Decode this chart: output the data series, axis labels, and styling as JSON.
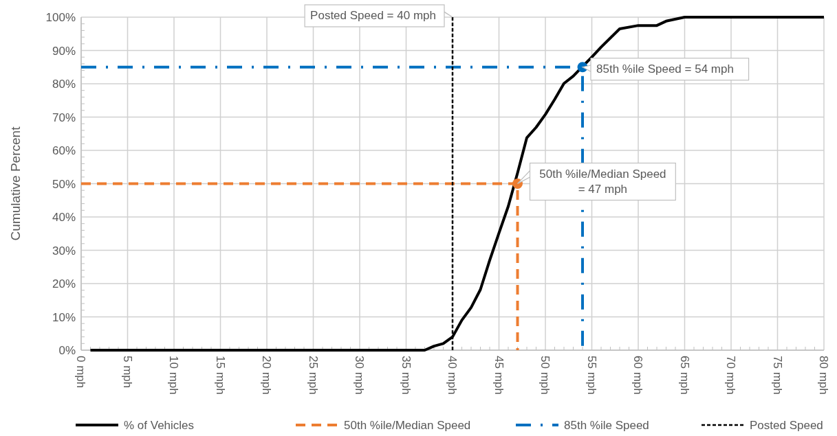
{
  "chart_data": {
    "type": "line",
    "ylabel": "Cumulative Percent",
    "xlim": [
      0,
      80
    ],
    "xticks": [
      {
        "value": 0,
        "label": "0 mph"
      },
      {
        "value": 5,
        "label": "5 mph"
      },
      {
        "value": 10,
        "label": "10 mph"
      },
      {
        "value": 15,
        "label": "15 mph"
      },
      {
        "value": 20,
        "label": "20 mph"
      },
      {
        "value": 25,
        "label": "25 mph"
      },
      {
        "value": 30,
        "label": "30 mph"
      },
      {
        "value": 35,
        "label": "35 mph"
      },
      {
        "value": 40,
        "label": "40 mph"
      },
      {
        "value": 45,
        "label": "45 mph"
      },
      {
        "value": 50,
        "label": "50 mph"
      },
      {
        "value": 55,
        "label": "55 mph"
      },
      {
        "value": 60,
        "label": "60 mph"
      },
      {
        "value": 65,
        "label": "65 mph"
      },
      {
        "value": 70,
        "label": "70 mph"
      },
      {
        "value": 75,
        "label": "75 mph"
      },
      {
        "value": 80,
        "label": "80 mph"
      }
    ],
    "ylim": [
      0,
      100
    ],
    "yticks": [
      {
        "value": 0,
        "label": "0%"
      },
      {
        "value": 10,
        "label": "10%"
      },
      {
        "value": 20,
        "label": "20%"
      },
      {
        "value": 30,
        "label": "30%"
      },
      {
        "value": 40,
        "label": "40%"
      },
      {
        "value": 50,
        "label": "50%"
      },
      {
        "value": 60,
        "label": "60%"
      },
      {
        "value": 70,
        "label": "70%"
      },
      {
        "value": 80,
        "label": "80%"
      },
      {
        "value": 90,
        "label": "90%"
      },
      {
        "value": 100,
        "label": "100%"
      }
    ],
    "grid": true,
    "legend": "bottom",
    "series": [
      {
        "name": "% of Vehicles",
        "color": "#000000",
        "line_style": "solid",
        "x": [
          1,
          37,
          38,
          39,
          40,
          41,
          42,
          43,
          44,
          45,
          46,
          47,
          48,
          49,
          50,
          51,
          52,
          53,
          54,
          55,
          56,
          58,
          60,
          62,
          63,
          65,
          80
        ],
        "values": [
          0,
          0,
          1.2,
          2,
          4,
          9,
          12.8,
          18.2,
          27,
          35.2,
          43.2,
          53.2,
          63.8,
          66.9,
          70.8,
          75.3,
          80.1,
          82.3,
          85.2,
          88,
          91,
          96.5,
          97.5,
          97.5,
          98.8,
          100,
          100
        ]
      },
      {
        "name": "50th %ile/Median Speed",
        "color": "#ed7d31",
        "line_style": "dashed",
        "x": [
          0,
          47,
          47
        ],
        "values": [
          50,
          50,
          0
        ]
      },
      {
        "name": "85th %ile Speed",
        "color": "#0070c0",
        "line_style": "dashdot",
        "x": [
          0,
          54,
          54
        ],
        "values": [
          85,
          85,
          0
        ]
      },
      {
        "name": "Posted Speed",
        "color": "#000000",
        "line_style": "dotted",
        "x": [
          40,
          40
        ],
        "values": [
          0,
          100
        ]
      },
      {
        "type": "scatter",
        "color": "#ed7d31",
        "marker": "circle",
        "x": [
          47
        ],
        "values": [
          50
        ]
      },
      {
        "type": "scatter",
        "color": "#0070c0",
        "marker": "circle",
        "x": [
          54
        ],
        "values": [
          85
        ]
      }
    ],
    "annotations": [
      {
        "text": "Posted Speed = 40 mph",
        "x": 40,
        "y": 100
      },
      {
        "text": "50th %ile/Median Speed\n= 47 mph",
        "x": 47,
        "y": 50
      },
      {
        "text": "85th %ile Speed = 54 mph",
        "x": 54,
        "y": 85
      }
    ]
  }
}
